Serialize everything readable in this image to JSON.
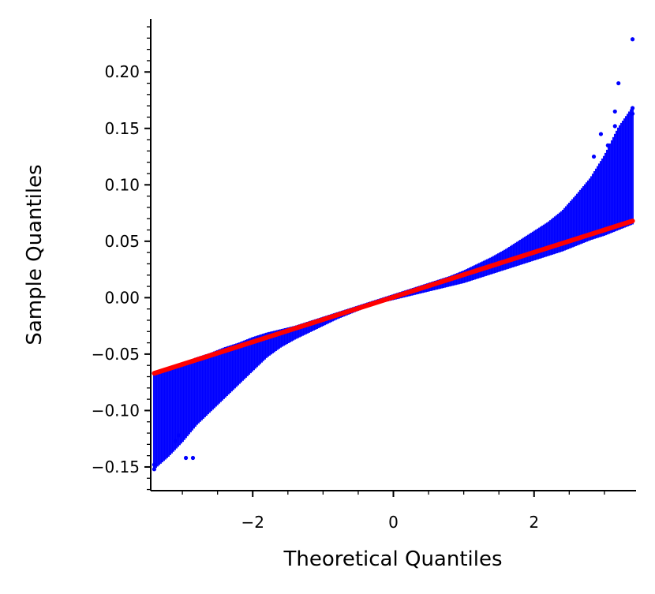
{
  "chart_data": {
    "type": "scatter",
    "title": "",
    "xlabel": "Theoretical Quantiles",
    "ylabel": "Sample Quantiles",
    "xlim": [
      -3.45,
      3.45
    ],
    "ylim": [
      -0.171,
      0.247
    ],
    "x_ticks": [
      {
        "value": -2,
        "label": "−2"
      },
      {
        "value": 0,
        "label": "0"
      },
      {
        "value": 2,
        "label": "2"
      }
    ],
    "y_ticks": [
      {
        "value": -0.15,
        "label": "−0.15"
      },
      {
        "value": -0.1,
        "label": "−0.10"
      },
      {
        "value": -0.05,
        "label": "−0.05"
      },
      {
        "value": 0.0,
        "label": "0.00"
      },
      {
        "value": 0.05,
        "label": "0.05"
      },
      {
        "value": 0.1,
        "label": "0.10"
      },
      {
        "value": 0.15,
        "label": "0.15"
      },
      {
        "value": 0.2,
        "label": "0.20"
      }
    ],
    "x_minor_step": 0.5,
    "y_minor_step": 0.01,
    "grid": false,
    "legend": "none",
    "colors": {
      "points": "#0000ff",
      "reference_line": "#ff0000"
    },
    "reference_line": {
      "x": [
        -3.4,
        3.4
      ],
      "y": [
        -0.067,
        0.068
      ]
    },
    "series": [
      {
        "x": [
          -3.4,
          -3.2,
          -3.0,
          -2.8,
          -2.6,
          -2.4,
          -2.2,
          -2.0,
          -1.8,
          -1.6,
          -1.4,
          -1.2,
          -1.0,
          -0.8,
          -0.6,
          -0.4,
          -0.2,
          0.0,
          0.2,
          0.4,
          0.6,
          0.8,
          1.0,
          1.2,
          1.4,
          1.6,
          1.8,
          2.0,
          2.2,
          2.4,
          2.6,
          2.8,
          3.0,
          3.2,
          3.4
        ],
        "y_min": [
          -0.151,
          -0.14,
          -0.127,
          -0.112,
          -0.1,
          -0.088,
          -0.076,
          -0.064,
          -0.052,
          -0.043,
          -0.036,
          -0.03,
          -0.024,
          -0.018,
          -0.013,
          -0.008,
          -0.004,
          -0.001,
          0.002,
          0.005,
          0.008,
          0.011,
          0.014,
          0.018,
          0.022,
          0.026,
          0.03,
          0.034,
          0.038,
          0.042,
          0.047,
          0.052,
          0.056,
          0.061,
          0.066
        ],
        "y_max": [
          -0.068,
          -0.064,
          -0.059,
          -0.054,
          -0.05,
          -0.045,
          -0.041,
          -0.036,
          -0.032,
          -0.029,
          -0.026,
          -0.022,
          -0.018,
          -0.014,
          -0.01,
          -0.006,
          -0.002,
          0.002,
          0.006,
          0.01,
          0.014,
          0.018,
          0.023,
          0.029,
          0.035,
          0.042,
          0.05,
          0.058,
          0.066,
          0.076,
          0.09,
          0.105,
          0.125,
          0.15,
          0.168
        ]
      }
    ],
    "outliers": [
      {
        "x": -3.4,
        "y": -0.152
      },
      {
        "x": -3.4,
        "y": -0.148
      },
      {
        "x": -3.1,
        "y": -0.127
      },
      {
        "x": -2.95,
        "y": -0.142
      },
      {
        "x": -2.85,
        "y": -0.142
      },
      {
        "x": -3.05,
        "y": -0.122
      },
      {
        "x": 2.85,
        "y": 0.125
      },
      {
        "x": 2.95,
        "y": 0.145
      },
      {
        "x": 3.05,
        "y": 0.135
      },
      {
        "x": 3.15,
        "y": 0.165
      },
      {
        "x": 3.15,
        "y": 0.152
      },
      {
        "x": 3.2,
        "y": 0.19
      },
      {
        "x": 3.4,
        "y": 0.229
      },
      {
        "x": 3.4,
        "y": 0.168
      },
      {
        "x": 3.4,
        "y": 0.163
      }
    ]
  }
}
